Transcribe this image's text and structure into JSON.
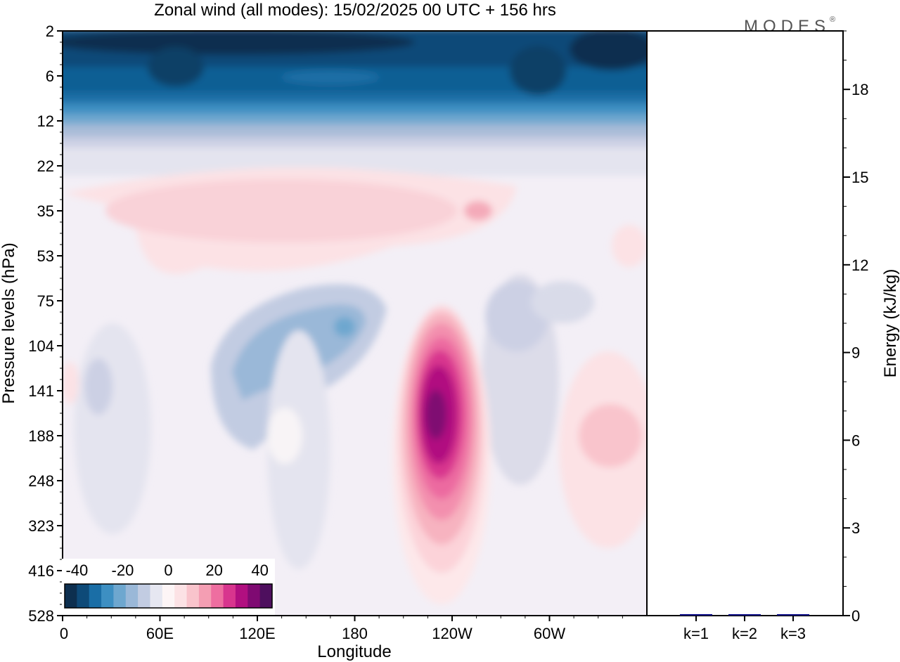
{
  "title": "Zonal wind (all modes):  15/02/2025  00 UTC  + 156 hrs",
  "watermark": "MODES",
  "watermark_mark": "®",
  "chart_data": [
    {
      "type": "heatmap",
      "title": "Zonal wind (all modes):  15/02/2025  00 UTC  + 156 hrs",
      "xlabel": "Longitude",
      "ylabel": "Pressure levels (hPa)",
      "x_tick_labels": [
        "0",
        "60E",
        "120E",
        "180",
        "120W",
        "60W"
      ],
      "x_range_deg": [
        0,
        360
      ],
      "y_tick_labels": [
        "2",
        "6",
        "12",
        "22",
        "35",
        "53",
        "75",
        "104",
        "141",
        "188",
        "248",
        "323",
        "416",
        "528"
      ],
      "y_scale": "model levels (top to bottom)",
      "colorbar": {
        "tick_labels": [
          "-40",
          "-20",
          "0",
          "20",
          "40"
        ],
        "colors": [
          "#0d2f4f",
          "#0e4a78",
          "#1a6ea6",
          "#3d8fc2",
          "#6ea7cf",
          "#9ab8d8",
          "#c2cce2",
          "#e6e7f1",
          "#fdf5f6",
          "#fce2e5",
          "#f9c4cc",
          "#f49eb3",
          "#ee6ea0",
          "#d8358e",
          "#b10f80",
          "#7f0a72",
          "#4e0f5e"
        ]
      },
      "features": [
        {
          "name": "stratospheric easterlies",
          "levels": "2-22 hPa",
          "longitudes": "0-360",
          "min_value": -45
        },
        {
          "name": "westerly band",
          "levels": "22-75 hPa",
          "longitudes": "0-240",
          "max_value": 12
        },
        {
          "name": "easterly core",
          "levels": "75-188 hPa",
          "longitudes": "40E-180",
          "min_value": -25
        },
        {
          "name": "westerly jet core",
          "levels": "75-323 hPa",
          "longitudes": "165W-110W",
          "max_value": 45
        },
        {
          "name": "westerly maximum",
          "levels": "141-248 hPa",
          "longitudes": "45W-0",
          "max_value": 12
        }
      ]
    },
    {
      "type": "bar",
      "ylabel": "Energy (kJ/kg)",
      "categories": [
        "k=1",
        "k=2",
        "k=3"
      ],
      "values": [
        0.05,
        0.03,
        0.03
      ],
      "ylim": [
        0,
        20
      ],
      "y_ticks": [
        0,
        3,
        6,
        9,
        12,
        15,
        18
      ],
      "bar_color": "#000080"
    }
  ]
}
